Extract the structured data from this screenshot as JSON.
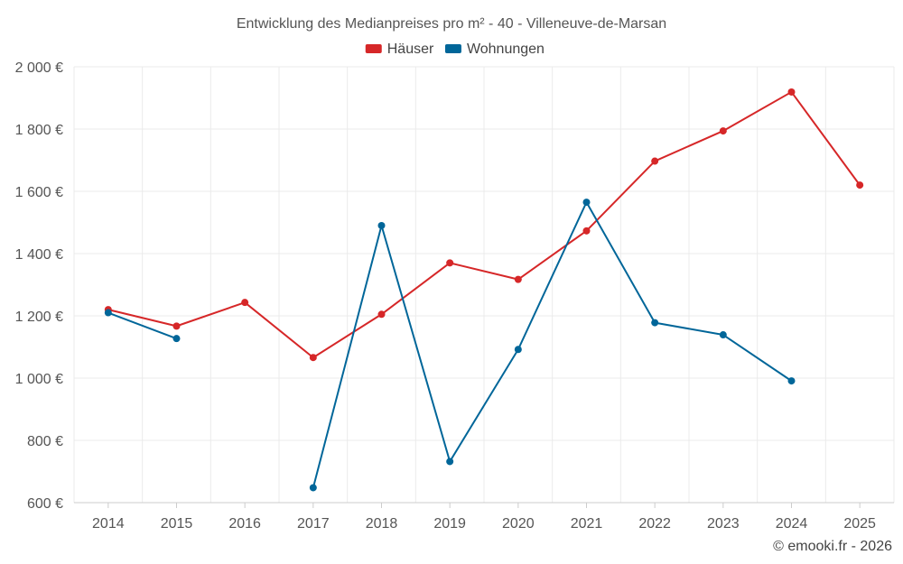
{
  "chart_data": {
    "type": "line",
    "title": "Entwicklung des Medianpreises pro m² - 40 - Villeneuve-de-Marsan",
    "categories": [
      "2014",
      "2015",
      "2016",
      "2017",
      "2018",
      "2019",
      "2020",
      "2021",
      "2022",
      "2023",
      "2024",
      "2025"
    ],
    "ylim": [
      600,
      2000
    ],
    "yticks": [
      600,
      800,
      1000,
      1200,
      1400,
      1600,
      1800,
      2000
    ],
    "ytick_labels": [
      "600 €",
      "800 €",
      "1 000 €",
      "1 200 €",
      "1 400 €",
      "1 600 €",
      "1 800 €",
      "2 000 €"
    ],
    "xlabel": "",
    "ylabel": "",
    "grid": true,
    "legend_position": "top-center",
    "series": [
      {
        "name": "Häuser",
        "color": "#d62728",
        "values": [
          1220,
          1167,
          1243,
          1066,
          1205,
          1370,
          1317,
          1473,
          1697,
          1794,
          1919,
          1620
        ]
      },
      {
        "name": "Wohnungen",
        "color": "#006699",
        "values": [
          1210,
          1127,
          null,
          648,
          1490,
          732,
          1092,
          1565,
          1178,
          1139,
          991,
          null
        ]
      }
    ]
  },
  "credit": "© emooki.fr - 2026"
}
